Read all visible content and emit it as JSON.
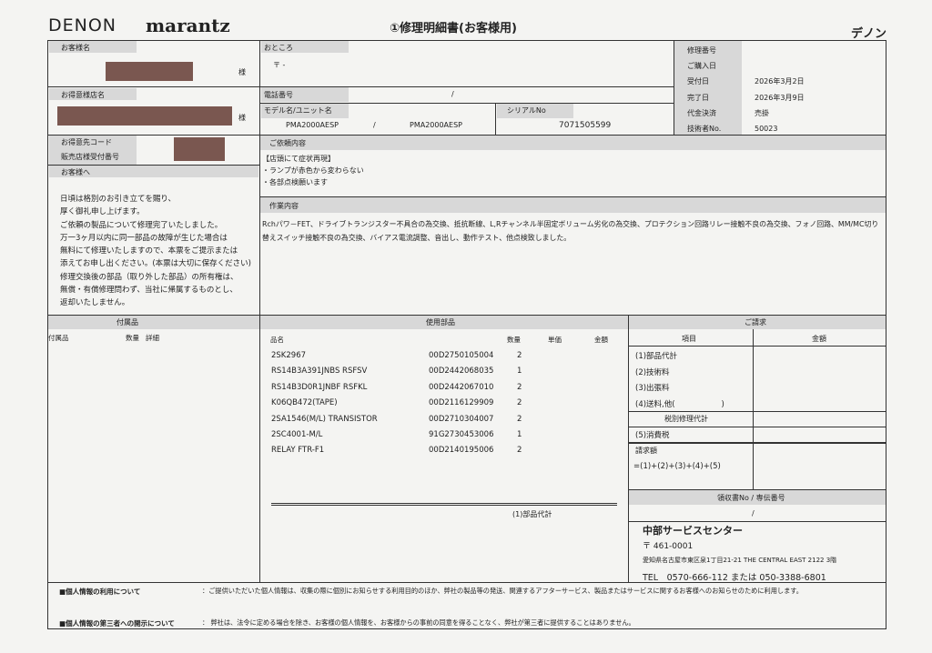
{
  "header": {
    "brand1": "DENON",
    "brand2": "marantz",
    "title": "①修理明細書(お客様用)",
    "right_label": "デノン"
  },
  "customer": {
    "name_label": "お客様名",
    "sama": "様",
    "dealer_label": "お得意様店名",
    "code_label": "お得意先コード",
    "receipt_label": "販売店様受付番号",
    "to_customer_label": "お客様へ",
    "message": [
      "日頃は格別のお引き立てを賜り、",
      "厚く御礼申し上げます。",
      "ご依頼の製品について修理完了いたしました。",
      "万一3ヶ月以内に同一部品の故障が生じた場合は",
      "無料にて修理いたしますので、本票をご提示または",
      "添えてお申し出ください。(本票は大切に保存ください)",
      "修理交換後の部品（取り外した部品）の所有権は、",
      "無償・有償修理問わず、当社に帰属するものとし、",
      "返却いたしません。"
    ]
  },
  "address": {
    "label": "おところ",
    "value": "〒 -",
    "phone_label": "電話番号",
    "phone_value": "/",
    "model_label": "モデル名/ユニット名",
    "model": "PMA2000AESP",
    "slash": "/",
    "unit": "PMA2000AESP",
    "serial_label": "シリアルNo",
    "serial": "7071505599"
  },
  "info": [
    {
      "label": "修理番号",
      "value": ""
    },
    {
      "label": "ご購入日",
      "value": ""
    },
    {
      "label": "受付日",
      "value": "2026年3月2日"
    },
    {
      "label": "完了日",
      "value": "2026年3月9日"
    },
    {
      "label": "代金決済",
      "value": "売掛"
    },
    {
      "label": "技術者No.",
      "value": "50023"
    }
  ],
  "request": {
    "label": "ご依頼内容",
    "lines": [
      "【店頭にて症状再現】",
      "・ランプが赤色から変わらない",
      "・各部点検願います"
    ]
  },
  "work": {
    "label": "作業内容",
    "lines": [
      "Rchパワ－FET、ドライブトランジスター不具合の為交換、抵抗断線、L,Rチャンネル半固定ボリューム劣化の為交換、プロテクション回路リレー接触不良の為交換、フォノ回路、MM/MC切り",
      "替えスイッチ接触不良の為交換、バイアス電流調整、音出し、動作テスト、他点検致しました。"
    ]
  },
  "accessories": {
    "label": "付属品",
    "col_name": "付属品",
    "col_qty": "数量",
    "col_detail": "詳細"
  },
  "parts": {
    "label": "使用部品",
    "col_name": "品名",
    "col_qty": "数量",
    "col_unit": "単価",
    "col_amount": "金額",
    "subtotal_label": "(1)部品代計",
    "rows": [
      {
        "name": "2SK2967",
        "code": "00D2750105004",
        "qty": "2"
      },
      {
        "name": "RS14B3A391JNBS RSFSV",
        "code": "00D2442068035",
        "qty": "1"
      },
      {
        "name": "RS14B3D0R1JNBF RSFKL",
        "code": "00D2442067010",
        "qty": "2"
      },
      {
        "name": "K06QB472(TAPE)",
        "code": "00D2116129909",
        "qty": "2"
      },
      {
        "name": "2SA1546(M/L) TRANSISTOR",
        "code": "00D2710304007",
        "qty": "2"
      },
      {
        "name": "2SC4001-M/L",
        "code": "91G2730453006",
        "qty": "1"
      },
      {
        "name": "RELAY FTR-F1",
        "code": "00D2140195006",
        "qty": "2"
      }
    ]
  },
  "billing": {
    "label": "ご請求",
    "col_item": "項目",
    "col_amount": "金額",
    "items": [
      "(1)部品代計",
      "(2)技術料",
      "(3)出張料",
      "(4)送料,他(　　　　　　)"
    ],
    "pretax": "税別修理代計",
    "tax": "(5)消費税",
    "total_label": "請求額",
    "total_formula": "=(1)+(2)+(3)+(4)+(5)",
    "receipt_label": "領収書No / 専伝番号",
    "receipt_value": "/"
  },
  "service": {
    "name": "中部サービスセンター",
    "zip": "〒 461-0001",
    "address": "愛知県名古屋市東区泉1丁目21-21 THE CENTRAL EAST 2122 3階",
    "tel": "TEL　0570-666-112 または 050-3388-6801"
  },
  "privacy": [
    {
      "label": "■個人情報の利用について",
      "text": "：ご提供いただいた個人情報は、収集の際に個別にお知らせする利用目的のほか、弊社の製品等の発送、関連するアフターサービス、製品またはサービスに関するお客様へのお知らせのために利用します。"
    },
    {
      "label": "■個人情報の第三者への開示について",
      "text": "：  弊社は、法令に定める場合を除き、お客様の個人情報を、お客様からの事前の同意を得ることなく、弊社が第三者に提供することはありません。"
    }
  ]
}
